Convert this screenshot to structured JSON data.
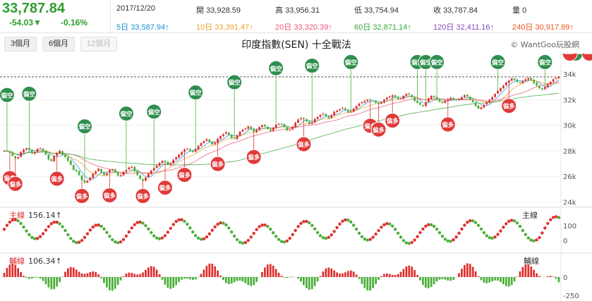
{
  "header": {
    "price": "33,787.84",
    "change": "-54.03▼",
    "change_pct": "-0.16%",
    "date": "2017/12/20",
    "open_label": "開",
    "open": "33,928.59",
    "high_label": "高",
    "high": "33,956.31",
    "low_label": "低",
    "low": "33,754.94",
    "close_label": "收",
    "close": "33,787.84",
    "volume_label": "量",
    "volume": "0"
  },
  "moving_averages": [
    {
      "label": "5日",
      "value": "33,587.94↑",
      "color": "#1e90d8"
    },
    {
      "label": "10日",
      "value": "33,391.47↑",
      "color": "#f0a030"
    },
    {
      "label": "20日",
      "value": "33,320.39↑",
      "color": "#e8557a"
    },
    {
      "label": "60日",
      "value": "32,871.14↑",
      "color": "#3aa83a"
    },
    {
      "label": "120日",
      "value": "32,411.16↑",
      "color": "#8a4dbf"
    },
    {
      "label": "240日",
      "value": "30,917.89↑",
      "color": "#e8541e"
    }
  ],
  "toolbar": {
    "btn_3m": "3個月",
    "btn_6m": "6個月",
    "btn_12m": "12個月"
  },
  "chart_title": "印度指數(SEN) 十全戰法",
  "credit": "© WantGoo玩股網",
  "panels": {
    "main_label": "主線",
    "main_value": "156.14↑",
    "main_right": "主線",
    "aux_label": "輔線",
    "aux_value": "106.34↑",
    "aux_right": "輔線"
  },
  "colors": {
    "up": "#e03030",
    "down": "#4caf3a",
    "text_green": "#2f9e2f"
  },
  "chart_data": [
    {
      "type": "candlestick",
      "title": "印度指數(SEN) 十全戰法",
      "y_axis_ticks": [
        "24k",
        "26k",
        "28k",
        "30k",
        "32k",
        "34k"
      ],
      "ylim": [
        23800,
        35500
      ],
      "reference_line": 33787.84,
      "close": [
        28000,
        27950,
        27850,
        27600,
        27400,
        27500,
        27900,
        28100,
        28200,
        28050,
        27800,
        27900,
        28150,
        28200,
        28000,
        27700,
        27300,
        27200,
        27600,
        27800,
        28000,
        27700,
        27500,
        27200,
        26900,
        26500,
        26400,
        26100,
        25700,
        25500,
        25650,
        25900,
        26200,
        26400,
        26600,
        26300,
        26100,
        26250,
        26500,
        26550,
        26300,
        26050,
        26100,
        26350,
        26500,
        26700,
        26750,
        26400,
        26100,
        25800,
        25650,
        25900,
        26200,
        26450,
        26650,
        26850,
        27050,
        27200,
        27100,
        26900,
        27000,
        27300,
        27500,
        27700,
        27900,
        28100,
        28150,
        28000,
        27900,
        28150,
        28400,
        28600,
        28750,
        28900,
        28700,
        28500,
        28650,
        28950,
        29150,
        29300,
        29450,
        29250,
        29000,
        28950,
        29200,
        29500,
        29650,
        29750,
        29900,
        29700,
        29500,
        29650,
        29850,
        30000,
        29900,
        29700,
        29550,
        29800,
        30050,
        30100,
        30050,
        29850,
        29600,
        29650,
        29900,
        30200,
        30450,
        30550,
        30500,
        30300,
        30100,
        30250,
        30500,
        30650,
        30800,
        30900,
        30700,
        30550,
        30800,
        31050,
        31150,
        31250,
        31350,
        31200,
        31000,
        31100,
        31300,
        31500,
        31700,
        31800,
        31900,
        32000,
        31950,
        31900,
        31750,
        31650,
        31800,
        32000,
        32150,
        32250,
        32350,
        32200,
        32050,
        32100,
        32300,
        32450,
        32400,
        32200,
        31900,
        31750,
        31600,
        31500,
        31800,
        32100,
        32300,
        32200,
        32000,
        31850,
        31750,
        31900,
        32050,
        32150,
        32000,
        31950,
        32050,
        32200,
        32350,
        32250,
        32000,
        31800,
        31500,
        31300,
        31400,
        31600,
        31800,
        32000,
        32200,
        32450,
        32700,
        32900,
        33100,
        33350,
        33500,
        33650,
        33550,
        33400,
        33300,
        33450,
        33600,
        33700,
        33550,
        33300,
        33100,
        32900,
        32800,
        33000,
        33200,
        33400,
        33600,
        33700,
        33788
      ]
    },
    {
      "type": "line",
      "name": "主線",
      "y_axis_ticks": [
        "0",
        "100"
      ],
      "ylim": [
        -60,
        175
      ],
      "reference_value": 156.14
    },
    {
      "type": "bar",
      "name": "輔線",
      "y_axis_ticks": [
        "0",
        "-250"
      ],
      "ylim": [
        -300,
        280
      ],
      "reference_value": 106.34
    }
  ],
  "signals": {
    "buy_label": "偏多",
    "sell_label": "偏空"
  }
}
